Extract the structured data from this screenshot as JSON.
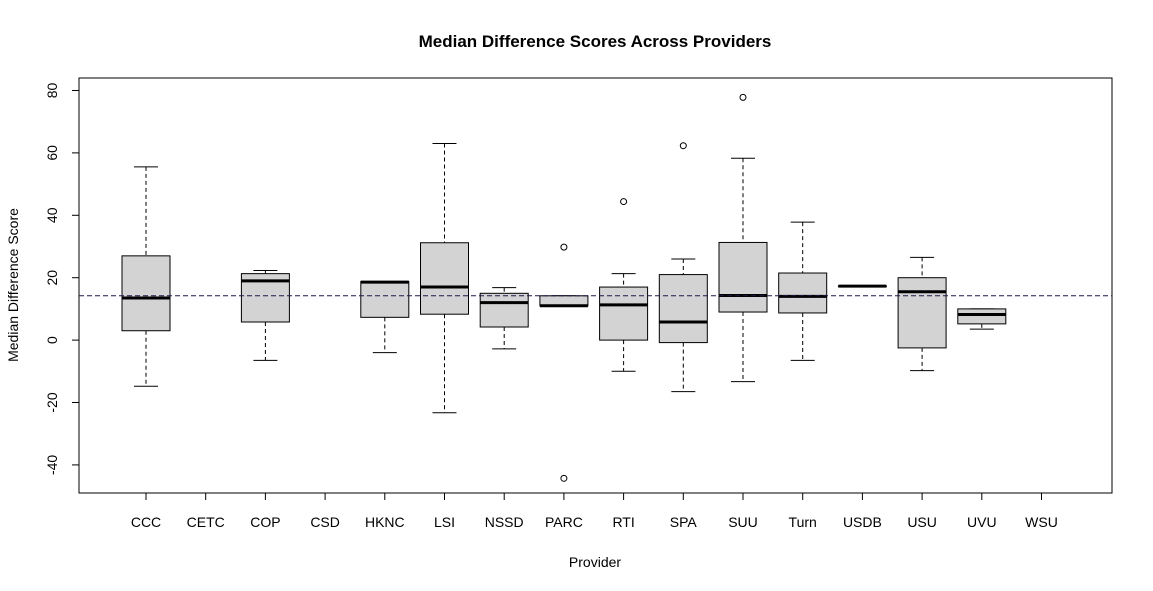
{
  "chart_data": {
    "type": "boxplot",
    "title": "Median Difference Scores Across Providers",
    "xlabel": "Provider",
    "ylabel": "Median Difference Score",
    "ylim": [
      -49,
      84
    ],
    "yticks": [
      -40,
      -20,
      0,
      20,
      40,
      60,
      80
    ],
    "reference_line": 14.2,
    "box_color": "#d3d3d3",
    "categories": [
      "CCC",
      "CETC",
      "COP",
      "CSD",
      "HKNC",
      "LSI",
      "NSSD",
      "PARC",
      "RTI",
      "SPA",
      "SUU",
      "Turn",
      "USDB",
      "USU",
      "UVU",
      "WSU"
    ],
    "boxes": [
      {
        "label": "CCC",
        "min": -14.8,
        "q1": 3,
        "median": 13.5,
        "q3": 27,
        "max": 55.5,
        "outliers": []
      },
      {
        "label": "CETC",
        "empty": true
      },
      {
        "label": "COP",
        "min": -6.5,
        "q1": 5.8,
        "median": 19,
        "q3": 21.3,
        "max": 22.3,
        "outliers": []
      },
      {
        "label": "CSD",
        "empty": true
      },
      {
        "label": "HKNC",
        "min": -4,
        "q1": 7.3,
        "median": 18.6,
        "q3": 18.8,
        "max": 18.8,
        "outliers": []
      },
      {
        "label": "LSI",
        "min": -23.3,
        "q1": 8.3,
        "median": 17,
        "q3": 31.2,
        "max": 63,
        "outliers": []
      },
      {
        "label": "NSSD",
        "min": -2.8,
        "q1": 4.2,
        "median": 12,
        "q3": 15,
        "max": 16.8,
        "outliers": []
      },
      {
        "label": "PARC",
        "min": 11,
        "q1": 11,
        "median": 11,
        "q3": 14.2,
        "max": 14.2,
        "outliers": [
          29.8,
          -44.3
        ]
      },
      {
        "label": "RTI",
        "min": -10,
        "q1": 0,
        "median": 11.3,
        "q3": 17,
        "max": 21.3,
        "outliers": [
          44.4
        ]
      },
      {
        "label": "SPA",
        "min": -16.5,
        "q1": -0.8,
        "median": 5.8,
        "q3": 21,
        "max": 26,
        "outliers": [
          62.3
        ]
      },
      {
        "label": "SUU",
        "min": -13.3,
        "q1": 9,
        "median": 14.3,
        "q3": 31.3,
        "max": 58.3,
        "outliers": [
          77.8
        ]
      },
      {
        "label": "Turn",
        "min": -6.5,
        "q1": 8.7,
        "median": 14,
        "q3": 21.5,
        "max": 37.8,
        "outliers": []
      },
      {
        "label": "USDB",
        "min": 17.3,
        "q1": 17.3,
        "median": 17.3,
        "q3": 17.3,
        "max": 17.3,
        "outliers": []
      },
      {
        "label": "USU",
        "min": -9.8,
        "q1": -2.5,
        "median": 15.5,
        "q3": 20,
        "max": 26.5,
        "outliers": []
      },
      {
        "label": "UVU",
        "min": 3.5,
        "q1": 5.2,
        "median": 8.2,
        "q3": 10,
        "max": 10,
        "outliers": []
      },
      {
        "label": "WSU",
        "empty": true
      }
    ]
  }
}
